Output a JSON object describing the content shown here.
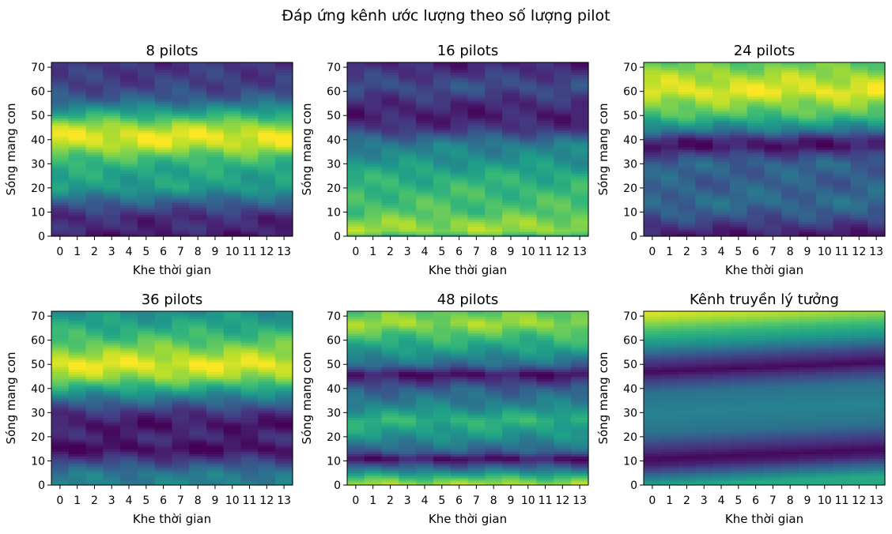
{
  "title": "Đáp ứng kênh ước lượng theo số lượng pilot",
  "chart_data": [
    {
      "type": "heatmap",
      "title": "8 pilots",
      "xlabel": "Khe thời gian",
      "ylabel": "Sóng mang con",
      "x_ticks": [
        "0",
        "1",
        "2",
        "3",
        "4",
        "5",
        "6",
        "7",
        "8",
        "9",
        "10",
        "11",
        "12",
        "13"
      ],
      "y_ticks": [
        "0",
        "10",
        "20",
        "30",
        "40",
        "50",
        "60",
        "70"
      ],
      "xlim": [
        -0.5,
        13.5
      ],
      "ylim": [
        0,
        72
      ],
      "colormap": "viridis",
      "profile": [
        [
          0,
          0.05
        ],
        [
          3,
          0.12
        ],
        [
          8,
          0.12
        ],
        [
          14,
          0.3
        ],
        [
          20,
          0.55
        ],
        [
          28,
          0.6
        ],
        [
          33,
          0.72
        ],
        [
          38,
          0.92
        ],
        [
          42,
          0.97
        ],
        [
          46,
          0.85
        ],
        [
          52,
          0.55
        ],
        [
          57,
          0.3
        ],
        [
          62,
          0.2
        ],
        [
          72,
          0.15
        ]
      ]
    },
    {
      "type": "heatmap",
      "title": "16 pilots",
      "xlabel": "Khe thời gian",
      "ylabel": "Sóng mang con",
      "x_ticks": [
        "0",
        "1",
        "2",
        "3",
        "4",
        "5",
        "6",
        "7",
        "8",
        "9",
        "10",
        "11",
        "12",
        "13"
      ],
      "y_ticks": [
        "0",
        "10",
        "20",
        "30",
        "40",
        "50",
        "60",
        "70"
      ],
      "xlim": [
        -0.5,
        13.5
      ],
      "ylim": [
        0,
        72
      ],
      "colormap": "viridis",
      "profile": [
        [
          0,
          0.6
        ],
        [
          2,
          0.85
        ],
        [
          6,
          0.82
        ],
        [
          10,
          0.72
        ],
        [
          18,
          0.68
        ],
        [
          25,
          0.62
        ],
        [
          32,
          0.5
        ],
        [
          38,
          0.42
        ],
        [
          45,
          0.15
        ],
        [
          50,
          0.08
        ],
        [
          55,
          0.12
        ],
        [
          62,
          0.25
        ],
        [
          68,
          0.15
        ],
        [
          72,
          0.1
        ]
      ]
    },
    {
      "type": "heatmap",
      "title": "24 pilots",
      "xlabel": "Khe thời gian",
      "ylabel": "Sóng mang con",
      "x_ticks": [
        "0",
        "1",
        "2",
        "3",
        "4",
        "5",
        "6",
        "7",
        "8",
        "9",
        "10",
        "11",
        "12",
        "13"
      ],
      "y_ticks": [
        "0",
        "10",
        "20",
        "30",
        "40",
        "50",
        "60",
        "70"
      ],
      "xlim": [
        -0.5,
        13.5
      ],
      "ylim": [
        0,
        72
      ],
      "colormap": "viridis",
      "profile": [
        [
          0,
          0.05
        ],
        [
          3,
          0.12
        ],
        [
          8,
          0.25
        ],
        [
          14,
          0.35
        ],
        [
          22,
          0.3
        ],
        [
          30,
          0.32
        ],
        [
          34,
          0.2
        ],
        [
          37,
          0.05
        ],
        [
          40,
          0.1
        ],
        [
          44,
          0.4
        ],
        [
          50,
          0.7
        ],
        [
          56,
          0.85
        ],
        [
          60,
          0.97
        ],
        [
          66,
          0.88
        ],
        [
          72,
          0.75
        ]
      ]
    },
    {
      "type": "heatmap",
      "title": "36 pilots",
      "xlabel": "Khe thời gian",
      "ylabel": "Sóng mang con",
      "x_ticks": [
        "0",
        "1",
        "2",
        "3",
        "4",
        "5",
        "6",
        "7",
        "8",
        "9",
        "10",
        "11",
        "12",
        "13"
      ],
      "y_ticks": [
        "0",
        "10",
        "20",
        "30",
        "40",
        "50",
        "60",
        "70"
      ],
      "xlim": [
        -0.5,
        13.5
      ],
      "ylim": [
        0,
        72
      ],
      "colormap": "viridis",
      "profile": [
        [
          0,
          0.45
        ],
        [
          5,
          0.4
        ],
        [
          10,
          0.2
        ],
        [
          15,
          0.02
        ],
        [
          20,
          0.12
        ],
        [
          25,
          0.05
        ],
        [
          30,
          0.15
        ],
        [
          35,
          0.35
        ],
        [
          40,
          0.6
        ],
        [
          45,
          0.85
        ],
        [
          50,
          0.97
        ],
        [
          55,
          0.85
        ],
        [
          60,
          0.72
        ],
        [
          66,
          0.6
        ],
        [
          72,
          0.5
        ]
      ]
    },
    {
      "type": "heatmap",
      "title": "48 pilots",
      "xlabel": "Khe thời gian",
      "ylabel": "Sóng mang con",
      "x_ticks": [
        "0",
        "1",
        "2",
        "3",
        "4",
        "5",
        "6",
        "7",
        "8",
        "9",
        "10",
        "11",
        "12",
        "13"
      ],
      "y_ticks": [
        "0",
        "10",
        "20",
        "30",
        "40",
        "50",
        "60",
        "70"
      ],
      "xlim": [
        -0.5,
        13.5
      ],
      "ylim": [
        0,
        72
      ],
      "colormap": "viridis",
      "profile": [
        [
          0,
          0.9
        ],
        [
          3,
          0.7
        ],
        [
          7,
          0.35
        ],
        [
          11,
          0.03
        ],
        [
          14,
          0.3
        ],
        [
          20,
          0.5
        ],
        [
          27,
          0.65
        ],
        [
          33,
          0.45
        ],
        [
          40,
          0.3
        ],
        [
          46,
          0.03
        ],
        [
          50,
          0.35
        ],
        [
          56,
          0.55
        ],
        [
          62,
          0.7
        ],
        [
          67,
          0.85
        ],
        [
          72,
          0.75
        ]
      ]
    },
    {
      "type": "heatmap",
      "title": "Kênh truyền lý tưởng",
      "xlabel": "Khe thời gian",
      "ylabel": "Sóng mang con",
      "x_ticks": [
        "0",
        "1",
        "2",
        "3",
        "4",
        "5",
        "6",
        "7",
        "8",
        "9",
        "10",
        "11",
        "12",
        "13"
      ],
      "y_ticks": [
        "0",
        "10",
        "20",
        "30",
        "40",
        "50",
        "60",
        "70"
      ],
      "xlim": [
        -0.5,
        13.5
      ],
      "ylim": [
        0,
        72
      ],
      "colormap": "viridis",
      "profile": [
        [
          0,
          0.6
        ],
        [
          4,
          0.35
        ],
        [
          8,
          0.1
        ],
        [
          11,
          0.02
        ],
        [
          15,
          0.15
        ],
        [
          22,
          0.38
        ],
        [
          30,
          0.45
        ],
        [
          38,
          0.38
        ],
        [
          43,
          0.2
        ],
        [
          47,
          0.02
        ],
        [
          52,
          0.2
        ],
        [
          58,
          0.5
        ],
        [
          64,
          0.7
        ],
        [
          68,
          0.85
        ],
        [
          72,
          0.97
        ]
      ]
    }
  ]
}
